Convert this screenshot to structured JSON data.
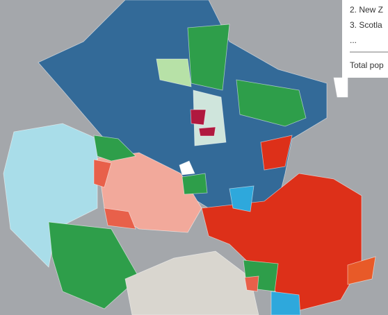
{
  "panel": {
    "lines": [
      "2. New Z",
      "3. Scotla",
      "...",
      "Total pop"
    ]
  }
}
